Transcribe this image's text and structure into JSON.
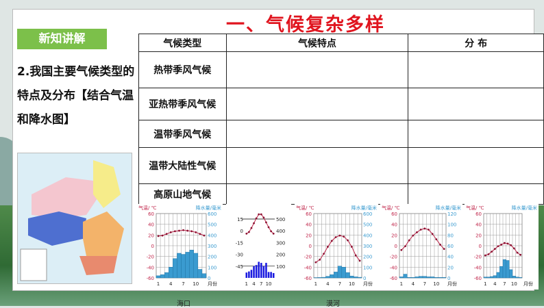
{
  "slide": {
    "title": "一、气候复杂多样",
    "badge": "新知讲解",
    "intro": "2.我国主要气候类型的特点及分布【结合气温和降水图】",
    "table": {
      "headers": [
        "气候类型",
        "气候特点",
        "分 布"
      ],
      "rows": [
        "热带季风气候",
        "亚热带季风气候",
        "温带季风气候",
        "温带大陆性气候",
        "高原山地气候"
      ]
    },
    "captions": [
      "海口",
      "漠河"
    ]
  },
  "colors": {
    "title": "#e0141e",
    "badge": "#7cc04a",
    "temp": "#c0254a",
    "precip": "#3a9bd0",
    "precip_alt": "#1a1adf"
  },
  "chart_data": [
    {
      "type": "bar+line",
      "left_label": "气温/ ℃",
      "right_label": "降水量/毫米",
      "x_ticks": [
        "1",
        "4",
        "7",
        "10",
        "月份"
      ],
      "left_ticks": [
        60,
        40,
        20,
        0,
        -20,
        -40,
        -60
      ],
      "right_ticks": [
        600,
        500,
        400,
        300,
        200,
        100,
        0
      ],
      "temp": [
        18,
        19,
        22,
        25,
        27,
        28,
        29,
        28,
        27,
        25,
        22,
        19
      ],
      "precip": [
        20,
        30,
        50,
        100,
        180,
        230,
        220,
        240,
        260,
        230,
        80,
        40
      ],
      "tmin": -60,
      "tmax": 60,
      "pmax": 600,
      "caption_index": 0
    },
    {
      "type": "bar+line",
      "left_label": "",
      "right_label": "",
      "x_ticks": [
        "1",
        "4",
        "7",
        "10"
      ],
      "left_ticks": [
        15,
        0,
        -15,
        -30,
        -45
      ],
      "right_ticks": [
        500,
        400,
        300,
        200,
        100
      ],
      "temp": [
        0,
        2,
        7,
        13,
        19,
        24,
        24,
        20,
        14,
        8,
        3,
        0
      ],
      "precip": [
        50,
        60,
        75,
        110,
        120,
        150,
        140,
        110,
        140,
        55,
        55,
        45
      ],
      "tmin": -55,
      "tmax": 25,
      "pmax": 600
    },
    {
      "type": "bar+line",
      "left_label": "气温/ ℃",
      "right_label": "降水量/毫米",
      "x_ticks": [
        "1",
        "4",
        "7",
        "10",
        "月份"
      ],
      "left_ticks": [
        60,
        40,
        20,
        0,
        -20,
        -40,
        -60
      ],
      "right_ticks": [
        600,
        500,
        400,
        300,
        200,
        100,
        0
      ],
      "temp": [
        -31,
        -26,
        -15,
        -2,
        9,
        16,
        19,
        17,
        10,
        -2,
        -18,
        -28
      ],
      "precip": [
        3,
        4,
        6,
        15,
        30,
        55,
        110,
        100,
        50,
        18,
        10,
        6
      ],
      "tmin": -60,
      "tmax": 60,
      "pmax": 600,
      "caption_index": 1
    },
    {
      "type": "bar+line",
      "left_label": "气温/ ℃",
      "right_label": "降水量/毫米",
      "x_ticks": [
        "1",
        "4",
        "7",
        "10",
        "月份"
      ],
      "left_ticks": [
        60,
        40,
        20,
        0,
        -20,
        -40,
        -60
      ],
      "right_ticks": [
        120,
        100,
        80,
        60,
        40,
        20,
        0
      ],
      "temp": [
        -8,
        -1,
        10,
        19,
        25,
        30,
        32,
        30,
        22,
        12,
        2,
        -6
      ],
      "precip": [
        2,
        7,
        1,
        1,
        2,
        3,
        3,
        2,
        2,
        1,
        1,
        1
      ],
      "tmin": -60,
      "tmax": 60,
      "pmax": 120
    },
    {
      "type": "bar+line",
      "left_label": "气温/ ℃",
      "right_label": "降水量/毫米",
      "x_ticks": [
        "1",
        "4",
        "7",
        "10",
        "月份"
      ],
      "left_ticks": [
        60,
        40,
        20,
        0,
        -20,
        -40,
        -60
      ],
      "right_ticks": [],
      "temp": [
        -18,
        -16,
        -11,
        -6,
        -1,
        2,
        5,
        4,
        1,
        -5,
        -13,
        -17
      ],
      "precip": [
        2,
        2,
        3,
        5,
        12,
        25,
        40,
        38,
        18,
        4,
        2,
        1
      ],
      "tmin": -60,
      "tmax": 60,
      "pmax": 140
    }
  ]
}
